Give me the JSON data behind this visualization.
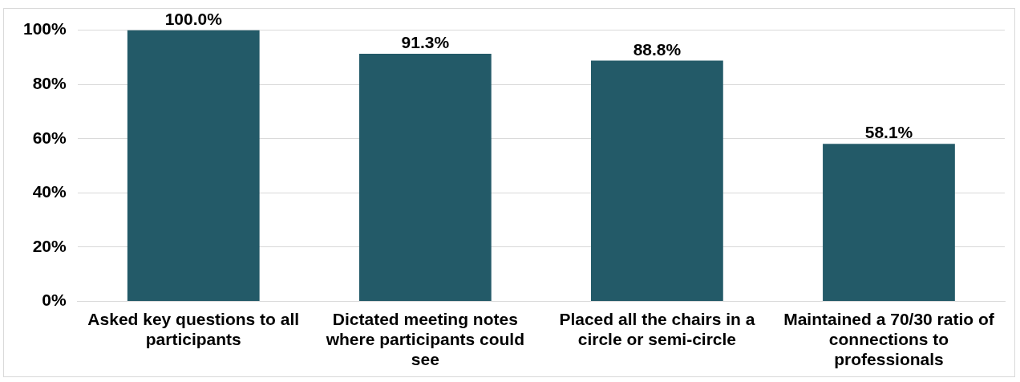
{
  "chart_data": {
    "type": "bar",
    "categories": [
      "Asked key questions to all participants",
      "Dictated meeting notes where participants could see",
      "Placed all the chairs in a circle or semi-circle",
      "Maintained a 70/30 ratio of connections to professionals"
    ],
    "values": [
      100.0,
      91.3,
      88.8,
      58.1
    ],
    "color": "#235a68",
    "ylim": [
      0,
      100
    ],
    "yticks": [
      {
        "value": 0,
        "label": "0%"
      },
      {
        "value": 20,
        "label": "20%"
      },
      {
        "value": 40,
        "label": "40%"
      },
      {
        "value": 60,
        "label": "60%"
      },
      {
        "value": 80,
        "label": "80%"
      },
      {
        "value": 100,
        "label": "100%"
      }
    ],
    "grid": "y",
    "value_labels": [
      "100.0%",
      "91.3%",
      "88.8%",
      "58.1%"
    ]
  }
}
